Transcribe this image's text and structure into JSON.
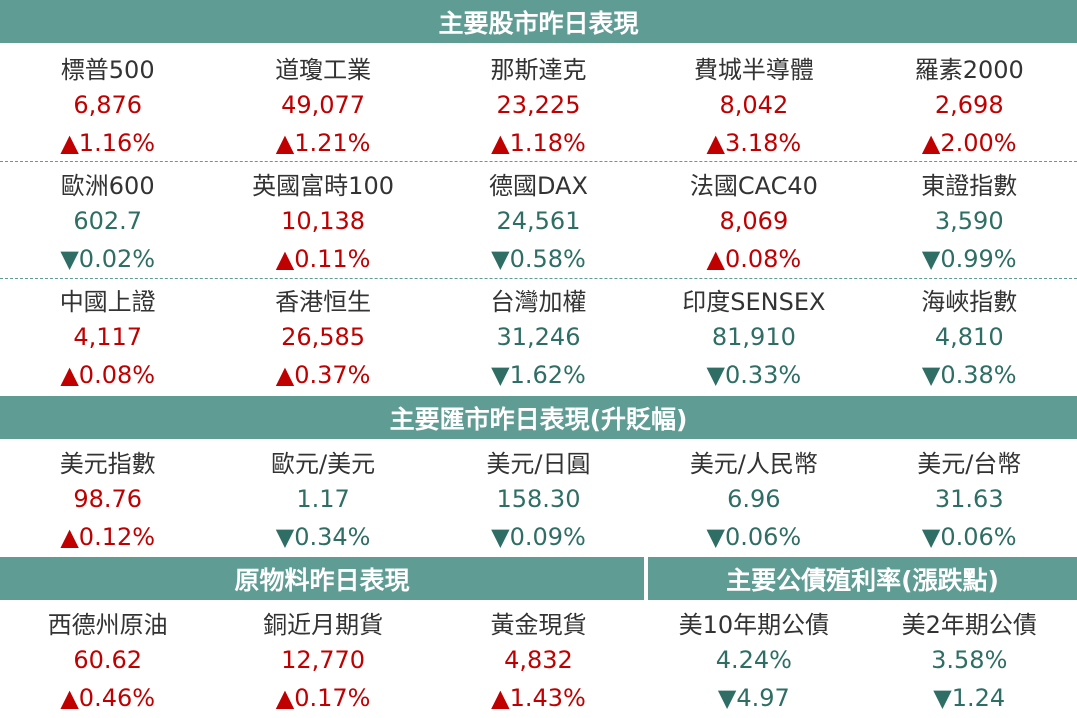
{
  "stock_section": {
    "title": "主要股市昨日表現",
    "groups": [
      [
        {
          "name": "標普500",
          "value": "6,876",
          "change": "▲1.16%",
          "dir": "up"
        },
        {
          "name": "道瓊工業",
          "value": "49,077",
          "change": "▲1.21%",
          "dir": "up"
        },
        {
          "name": "那斯達克",
          "value": "23,225",
          "change": "▲1.18%",
          "dir": "up"
        },
        {
          "name": "費城半導體",
          "value": "8,042",
          "change": "▲3.18%",
          "dir": "up"
        },
        {
          "name": "羅素2000",
          "value": "2,698",
          "change": "▲2.00%",
          "dir": "up"
        }
      ],
      [
        {
          "name": "歐洲600",
          "value": "602.7",
          "change": "▼0.02%",
          "dir": "down"
        },
        {
          "name": "英國富時100",
          "value": "10,138",
          "change": "▲0.11%",
          "dir": "up"
        },
        {
          "name": "德國DAX",
          "value": "24,561",
          "change": "▼0.58%",
          "dir": "down"
        },
        {
          "name": "法國CAC40",
          "value": "8,069",
          "change": "▲0.08%",
          "dir": "up"
        },
        {
          "name": "東證指數",
          "value": "3,590",
          "change": "▼0.99%",
          "dir": "down"
        }
      ],
      [
        {
          "name": "中國上證",
          "value": "4,117",
          "change": "▲0.08%",
          "dir": "up"
        },
        {
          "name": "香港恒生",
          "value": "26,585",
          "change": "▲0.37%",
          "dir": "up"
        },
        {
          "name": "台灣加權",
          "value": "31,246",
          "change": "▼1.62%",
          "dir": "down"
        },
        {
          "name": "印度SENSEX",
          "value": "81,910",
          "change": "▼0.33%",
          "dir": "down"
        },
        {
          "name": "海峽指數",
          "value": "4,810",
          "change": "▼0.38%",
          "dir": "down"
        }
      ]
    ]
  },
  "fx_section": {
    "title": "主要匯市昨日表現(升貶幅)",
    "items": [
      {
        "name": "美元指數",
        "value": "98.76",
        "change": "▲0.12%",
        "dir": "up"
      },
      {
        "name": "歐元/美元",
        "value": "1.17",
        "change": "▼0.34%",
        "dir": "down"
      },
      {
        "name": "美元/日圓",
        "value": "158.30",
        "change": "▼0.09%",
        "dir": "down"
      },
      {
        "name": "美元/人民幣",
        "value": "6.96",
        "change": "▼0.06%",
        "dir": "down"
      },
      {
        "name": "美元/台幣",
        "value": "31.63",
        "change": "▼0.06%",
        "dir": "down"
      }
    ]
  },
  "commodity_section": {
    "title": "原物料昨日表現",
    "items": [
      {
        "name": "西德州原油",
        "value": "60.62",
        "change": "▲0.46%",
        "dir": "up"
      },
      {
        "name": "銅近月期貨",
        "value": "12,770",
        "change": "▲0.17%",
        "dir": "up"
      },
      {
        "name": "黃金現貨",
        "value": "4,832",
        "change": "▲1.43%",
        "dir": "up"
      }
    ]
  },
  "bond_section": {
    "title": "主要公債殖利率(漲跌點)",
    "items": [
      {
        "name": "美10年期公債",
        "value": "4.24%",
        "change": "▼4.97",
        "dir": "down"
      },
      {
        "name": "美2年期公債",
        "value": "3.58%",
        "change": "▼1.24",
        "dir": "down"
      }
    ]
  },
  "colors": {
    "header_bg": "#5f9c93",
    "up": "#c00000",
    "down": "#2e6e64",
    "name": "#333333"
  }
}
